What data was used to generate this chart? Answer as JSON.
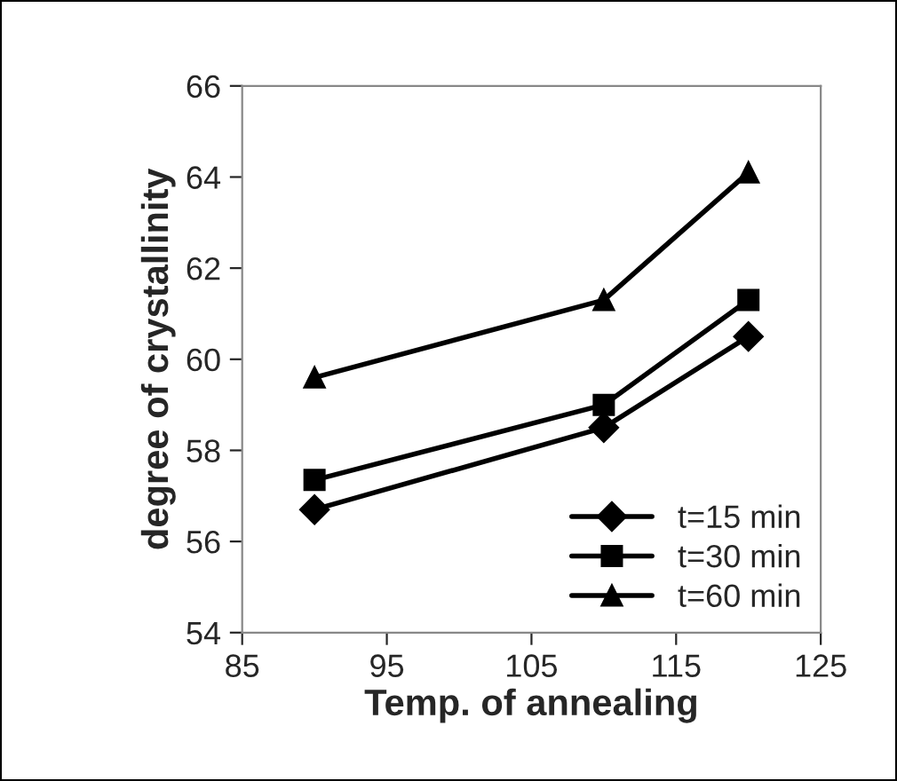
{
  "chart_data": {
    "type": "line",
    "xlabel": "Temp. of annealing",
    "ylabel": "degree of crystallinity",
    "x": [
      90,
      110,
      120
    ],
    "series": [
      {
        "name": "t=15 min",
        "color": "#000000",
        "values": [
          56.7,
          58.5,
          60.5
        ],
        "marker": "diamond"
      },
      {
        "name": "t=30 min",
        "color": "#000000",
        "values": [
          57.35,
          59.0,
          61.3
        ],
        "marker": "square"
      },
      {
        "name": "t=60 min",
        "color": "#000000",
        "values": [
          59.6,
          61.3,
          64.1
        ],
        "marker": "triangle"
      }
    ],
    "xlim": [
      85,
      125
    ],
    "xticks": [
      85,
      95,
      105,
      115,
      125
    ],
    "ylim": [
      54,
      66
    ],
    "yticks": [
      54,
      56,
      58,
      60,
      62,
      64,
      66
    ],
    "grid": false,
    "legend": "bottom right",
    "line_style": "solid"
  }
}
